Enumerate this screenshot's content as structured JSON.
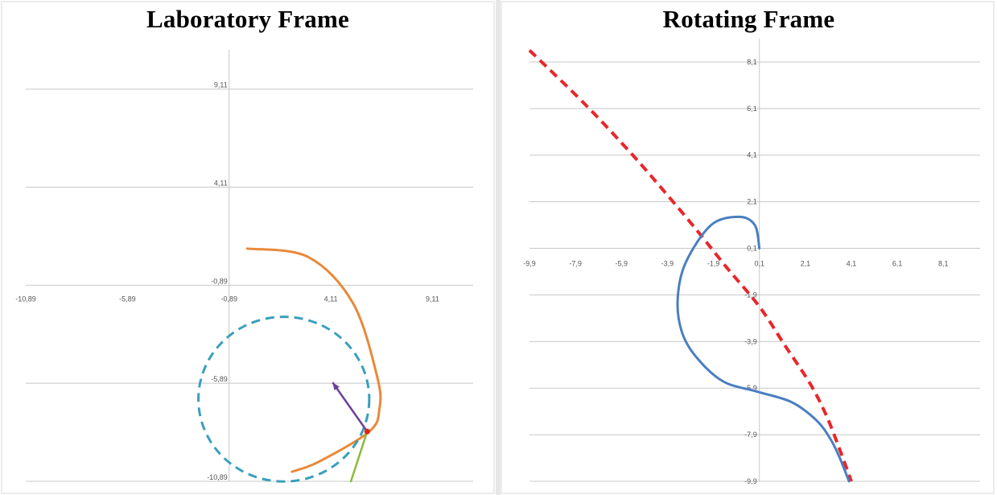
{
  "chart_data": [
    {
      "type": "line",
      "title": "Laboratory Frame",
      "x_ticks": [
        "-10,89",
        "-5,89",
        "-0,89",
        "4,11",
        "9,11"
      ],
      "y_ticks": [
        "9,11",
        "4,11",
        "-0,89",
        "-5,89",
        "-10,89"
      ],
      "xlim": [
        -10.89,
        11.11
      ],
      "ylim": [
        -10.89,
        11.11
      ],
      "grid": true,
      "colors": {
        "orange": "#e8893a",
        "dashed": "#3a9fbd",
        "arrow": "#6a3f9a",
        "green": "#8bbb3d",
        "point": "#d9261c"
      },
      "series": [
        {
          "style": "solid",
          "color": "#e8893a",
          "x": [
            0.0,
            3.0,
            5.2,
            6.4,
            6.5,
            6.0,
            3.5,
            2.2
          ],
          "y": [
            0.98,
            0.55,
            -1.8,
            -5.6,
            -7.2,
            -8.35,
            -9.9,
            -10.4
          ]
        },
        {
          "style": "dashed",
          "color": "#3a9fbd",
          "shape": "circle",
          "center": [
            1.8,
            -6.7
          ],
          "radius": 4.2
        },
        {
          "style": "arrow",
          "color": "#6a3f9a",
          "x": [
            5.9,
            4.2
          ],
          "y": [
            -8.35,
            -5.85
          ]
        },
        {
          "style": "solid",
          "color": "#8bbb3d",
          "x": [
            5.9,
            5.1
          ],
          "y": [
            -8.35,
            -10.89
          ]
        },
        {
          "style": "point",
          "color": "#d9261c",
          "x": [
            5.9
          ],
          "y": [
            -8.35
          ]
        }
      ]
    },
    {
      "type": "line",
      "title": "Rotating Frame",
      "x_ticks": [
        "-9,9",
        "-7,9",
        "-5,9",
        "-3,9",
        "-1,9",
        "0,1",
        "2,1",
        "4,1",
        "6,1",
        "8,1"
      ],
      "y_ticks": [
        "8,1",
        "6,1",
        "4,1",
        "2,1",
        "0,1",
        "-1,9",
        "-3,9",
        "-5,9",
        "-7,9",
        "-9,9"
      ],
      "xlim": [
        -9.9,
        9.7
      ],
      "ylim": [
        -9.9,
        9.1
      ],
      "grid": true,
      "colors": {
        "dashed": "#e8262a",
        "solid": "#4a7fc1"
      },
      "series": [
        {
          "style": "dashed",
          "color": "#e8262a",
          "x": [
            -9.9,
            -7.5,
            -5.5,
            -4.0,
            -2.6,
            -1.3,
            0.1,
            1.2,
            2.3,
            3.0,
            3.6,
            4.1
          ],
          "y": [
            8.6,
            6.3,
            4.2,
            2.5,
            0.85,
            -0.75,
            -2.4,
            -4.05,
            -5.7,
            -7.05,
            -8.55,
            -9.9
          ]
        },
        {
          "style": "solid",
          "color": "#4a7fc1",
          "x": [
            0.1,
            -0.1,
            -0.8,
            -2.0,
            -3.1,
            -3.45,
            -3.3,
            -2.7,
            -1.5,
            0.0,
            1.5,
            2.6,
            3.2,
            3.6,
            4.0
          ],
          "y": [
            0.1,
            1.1,
            1.45,
            1.1,
            -0.5,
            -2.0,
            -3.4,
            -4.5,
            -5.6,
            -6.05,
            -6.5,
            -7.3,
            -8.1,
            -8.9,
            -9.9
          ]
        }
      ]
    }
  ]
}
